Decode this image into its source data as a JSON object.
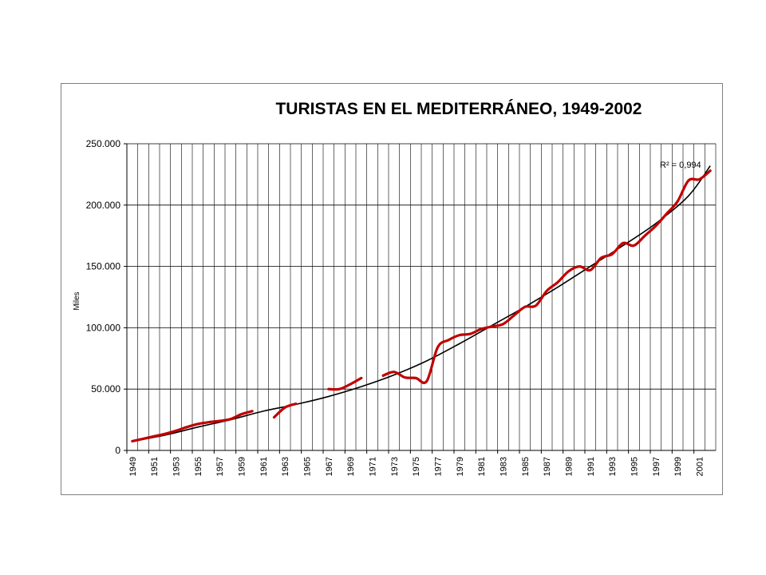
{
  "chart_data": {
    "type": "line",
    "title": "TURISTAS EN EL MEDITERRÁNEO, 1949-2002",
    "ylabel": "Miles",
    "xlabel": "",
    "ylim": [
      0,
      250000
    ],
    "xlim": [
      1949,
      2002
    ],
    "grid": true,
    "yticks": [
      0,
      50000,
      100000,
      150000,
      200000,
      250000
    ],
    "ytick_labels": [
      "0",
      "50.000",
      "100.000",
      "150.000",
      "200.000",
      "250.000"
    ],
    "xtick_labels": [
      "1949",
      "1951",
      "1953",
      "1955",
      "1957",
      "1959",
      "1961",
      "1963",
      "1965",
      "1967",
      "1969",
      "1971",
      "1973",
      "1975",
      "1977",
      "1979",
      "1981",
      "1983",
      "1985",
      "1987",
      "1989",
      "1991",
      "1993",
      "1995",
      "1997",
      "1999",
      "2001"
    ],
    "annotation": "R² = 0,994",
    "series": [
      {
        "name": "",
        "color": "#c00000",
        "segments": [
          [
            [
              1949,
              7500
            ],
            [
              1950,
              9500
            ],
            [
              1951,
              11500
            ],
            [
              1952,
              13500
            ],
            [
              1953,
              16000
            ],
            [
              1954,
              19000
            ],
            [
              1955,
              21500
            ],
            [
              1956,
              23000
            ],
            [
              1957,
              24000
            ],
            [
              1958,
              25500
            ],
            [
              1959,
              29500
            ],
            [
              1960,
              32000
            ]
          ],
          [
            [
              1962,
              27000
            ],
            [
              1963,
              35000
            ],
            [
              1964,
              38000
            ]
          ],
          [
            [
              1967,
              50000
            ],
            [
              1968,
              50000
            ],
            [
              1969,
              54000
            ],
            [
              1970,
              59000
            ]
          ],
          [
            [
              1972,
              61000
            ],
            [
              1973,
              64000
            ],
            [
              1974,
              59500
            ],
            [
              1975,
              59000
            ],
            [
              1976,
              56500
            ],
            [
              1977,
              84000
            ],
            [
              1978,
              90000
            ],
            [
              1979,
              94000
            ],
            [
              1980,
              95000
            ],
            [
              1981,
              99000
            ],
            [
              1982,
              101000
            ],
            [
              1983,
              103000
            ],
            [
              1984,
              110000
            ],
            [
              1985,
              117000
            ],
            [
              1986,
              118000
            ],
            [
              1987,
              130000
            ],
            [
              1988,
              137000
            ],
            [
              1989,
              146000
            ],
            [
              1990,
              150000
            ],
            [
              1991,
              147000
            ],
            [
              1992,
              157000
            ],
            [
              1993,
              160000
            ],
            [
              1994,
              169000
            ],
            [
              1995,
              167000
            ],
            [
              1996,
              175000
            ],
            [
              1997,
              183000
            ],
            [
              1998,
              193000
            ],
            [
              1999,
              203000
            ],
            [
              2000,
              220000
            ],
            [
              2001,
              221000
            ],
            [
              2002,
              228000
            ]
          ]
        ]
      },
      {
        "name": "",
        "color": "#000000",
        "trend": [
          [
            1949,
            7500
          ],
          [
            1952,
            12500
          ],
          [
            1955,
            19000
          ],
          [
            1958,
            25000
          ],
          [
            1961,
            32000
          ],
          [
            1964,
            37500
          ],
          [
            1967,
            44000
          ],
          [
            1970,
            52000
          ],
          [
            1973,
            61500
          ],
          [
            1976,
            73000
          ],
          [
            1979,
            87000
          ],
          [
            1982,
            102000
          ],
          [
            1985,
            117000
          ],
          [
            1988,
            133000
          ],
          [
            1991,
            150000
          ],
          [
            1994,
            167000
          ],
          [
            1997,
            185000
          ],
          [
            2000,
            207500
          ],
          [
            2002,
            232000
          ]
        ]
      }
    ]
  }
}
